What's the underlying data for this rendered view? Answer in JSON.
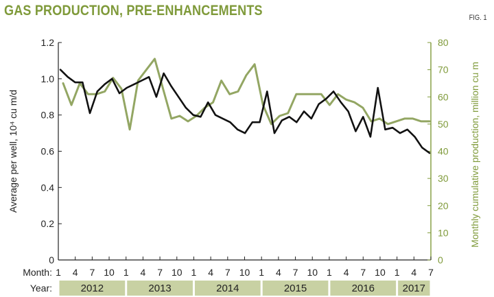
{
  "header": {
    "title": "GAS PRODUCTION, PRE-ENHANCEMENTS",
    "figure_label": "FIG. 1"
  },
  "colors": {
    "left_series": "#111111",
    "right_series": "#93a663",
    "axis_right": "#7f9a3a",
    "year_band": "#c8d1a3"
  },
  "chart_data": {
    "type": "line",
    "x_month_label": "Month:",
    "x_year_label": "Year:",
    "month_ticks": [
      "1",
      "4",
      "7",
      "10",
      "1",
      "4",
      "7",
      "10",
      "1",
      "4",
      "7",
      "10",
      "1",
      "4",
      "7",
      "10",
      "1",
      "4",
      "7",
      "10",
      "1",
      "4",
      "7"
    ],
    "years": [
      "2012",
      "2013",
      "2014",
      "2015",
      "2016",
      "2017"
    ],
    "ylabel_left": "Average per well, 10⁴ cu m/d",
    "ylabel_right": "Monthly cumulative production, million cu m",
    "ylim_left": [
      0,
      1.2
    ],
    "ylim_right": [
      0,
      80
    ],
    "yticks_left": [
      "0",
      "0.2",
      "0.4",
      "0.6",
      "0.8",
      "1.0",
      "1.2"
    ],
    "yticks_right": [
      "0",
      "10",
      "20",
      "30",
      "40",
      "50",
      "60",
      "70",
      "80"
    ],
    "grid": false,
    "series": [
      {
        "axis": "left",
        "values": [
          1.05,
          1.01,
          0.98,
          0.98,
          0.81,
          0.93,
          0.97,
          1.0,
          0.92,
          0.95,
          0.97,
          0.99,
          1.01,
          0.9,
          1.03,
          0.96,
          0.9,
          0.84,
          0.8,
          0.79,
          0.87,
          0.8,
          0.78,
          0.76,
          0.72,
          0.7,
          0.76,
          0.76,
          0.93,
          0.7,
          0.77,
          0.79,
          0.76,
          0.82,
          0.78,
          0.86,
          0.89,
          0.93,
          0.87,
          0.82,
          0.71,
          0.79,
          0.68,
          0.95,
          0.72,
          0.73,
          0.7,
          0.72,
          0.68,
          0.62,
          0.59
        ]
      },
      {
        "axis": "right",
        "values": [
          65,
          57,
          65,
          61,
          61,
          62,
          67,
          63,
          48,
          66,
          70,
          74,
          63,
          52,
          53,
          51,
          53,
          56,
          58,
          66,
          61,
          62,
          68,
          72,
          57,
          50,
          53,
          54,
          61,
          61,
          61,
          61,
          57,
          61,
          59,
          58,
          56,
          51,
          52,
          50,
          51,
          52,
          52,
          51,
          51
        ]
      }
    ]
  }
}
